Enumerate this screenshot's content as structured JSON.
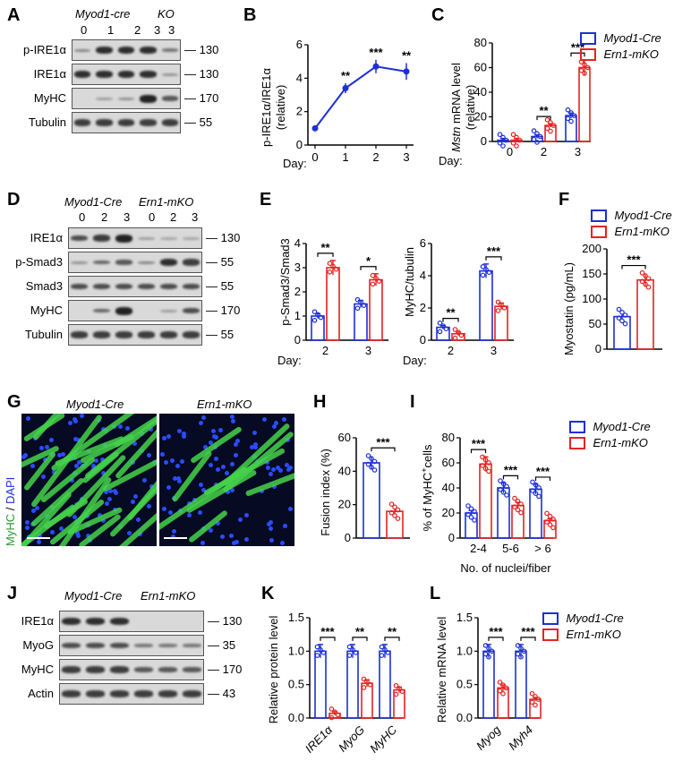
{
  "colors": {
    "cre": "#1d2fd6",
    "ko": "#e52222",
    "green": "#45d24a",
    "blue": "#2a4cff"
  },
  "legend": {
    "cre": "Myod1-Cre",
    "ko": "Ern1-mKO"
  },
  "A": {
    "letter": "A",
    "group1": "Myod1-cre",
    "group2": "KO",
    "lanes": [
      "0",
      "1",
      "2",
      "3",
      "3"
    ],
    "rows": [
      "p-IRE1α",
      "IRE1α",
      "MyHC",
      "Tubulin"
    ],
    "mw": [
      "130",
      "130",
      "170",
      "55"
    ]
  },
  "B": {
    "letter": "B",
    "ylabel_a": "p-IRE1α/IRE1α",
    "ylabel_b": "(relative)",
    "xprefix": "Day:",
    "chart_data": {
      "type": "line",
      "x": [
        0,
        1,
        2,
        3
      ],
      "values": [
        1.0,
        3.4,
        4.7,
        4.4
      ],
      "err": [
        0.1,
        0.3,
        0.4,
        0.5
      ],
      "sig": [
        "",
        "**",
        "***",
        "**"
      ],
      "ylim": [
        0,
        6
      ],
      "yticks": [
        0,
        2,
        4,
        6
      ]
    }
  },
  "C": {
    "letter": "C",
    "ylabel_a": "Mstn",
    "ylabel_b": " mRNA level",
    "ylabel_c": "(relative)",
    "xprefix": "Day:",
    "chart_data": {
      "type": "bar",
      "categories": [
        "0",
        "2",
        "3"
      ],
      "series": [
        {
          "name": "Myod1-Cre",
          "values": [
            1,
            4,
            21
          ]
        },
        {
          "name": "Ern1-mKO",
          "values": [
            1,
            13,
            60
          ]
        }
      ],
      "sig": [
        "",
        "**",
        "***"
      ],
      "ylim": [
        0,
        80
      ],
      "yticks": [
        0,
        20,
        40,
        60,
        80
      ]
    }
  },
  "D": {
    "letter": "D",
    "group1": "Myod1-Cre",
    "group2": "Ern1-mKO",
    "lanes": [
      "0",
      "2",
      "3",
      "0",
      "2",
      "3"
    ],
    "rows": [
      "IRE1α",
      "p-Smad3",
      "Smad3",
      "MyHC",
      "Tubulin"
    ],
    "mw": [
      "130",
      "55",
      "55",
      "170",
      "55"
    ]
  },
  "E": {
    "letter": "E",
    "xprefix": "Day:",
    "left": {
      "ylabel": "p-Smad3/Smad3",
      "chart_data": {
        "type": "bar",
        "categories": [
          "2",
          "3"
        ],
        "series": [
          {
            "name": "Myod1-Cre",
            "values": [
              1.0,
              1.5
            ]
          },
          {
            "name": "Ern1-mKO",
            "values": [
              3.0,
              2.5
            ]
          }
        ],
        "sig": [
          "**",
          "*"
        ],
        "ylim": [
          0,
          4
        ],
        "yticks": [
          0,
          1,
          2,
          3,
          4
        ]
      }
    },
    "right": {
      "ylabel": "MyHC/tubulin",
      "chart_data": {
        "type": "bar",
        "categories": [
          "2",
          "3"
        ],
        "series": [
          {
            "name": "Myod1-Cre",
            "values": [
              0.8,
              4.3
            ]
          },
          {
            "name": "Ern1-mKO",
            "values": [
              0.4,
              2.1
            ]
          }
        ],
        "sig": [
          "**",
          "***"
        ],
        "ylim": [
          0,
          6
        ],
        "yticks": [
          0,
          2,
          4,
          6
        ]
      }
    }
  },
  "F": {
    "letter": "F",
    "ylabel": "Myostatin (pg/mL)",
    "chart_data": {
      "type": "bar",
      "categories": [
        "Myod1-Cre",
        "Ern1-mKO"
      ],
      "values": [
        65,
        138
      ],
      "sig": "***",
      "ylim": [
        0,
        200
      ],
      "yticks": [
        0,
        50,
        100,
        150,
        200
      ]
    }
  },
  "G": {
    "letter": "G",
    "title1": "Myod1-Cre",
    "title2": "Ern1-mKO",
    "ylab_a": "MyHC",
    "ylab_sep": " / ",
    "ylab_b": "DAPI"
  },
  "H": {
    "letter": "H",
    "ylabel": "Fusion index (%)",
    "chart_data": {
      "type": "bar",
      "categories": [
        "Myod1-Cre",
        "Ern1-mKO"
      ],
      "values": [
        45,
        16
      ],
      "sig": "***",
      "ylim": [
        0,
        60
      ],
      "yticks": [
        0,
        20,
        40,
        60
      ]
    }
  },
  "I": {
    "letter": "I",
    "ylabel": "% of MyHC",
    "ylabel_sup": "+",
    "ylabel_end": "cells",
    "xlabel": "No. of nuclei/fiber",
    "chart_data": {
      "type": "bar",
      "categories": [
        "2-4",
        "5-6",
        "> 6"
      ],
      "series": [
        {
          "name": "Myod1-Cre",
          "values": [
            20,
            40,
            39
          ]
        },
        {
          "name": "Ern1-mKO",
          "values": [
            59,
            26,
            14
          ]
        }
      ],
      "sig": [
        "***",
        "***",
        "***"
      ],
      "ylim": [
        0,
        80
      ],
      "yticks": [
        0,
        20,
        40,
        60,
        80
      ]
    }
  },
  "J": {
    "letter": "J",
    "group1": "Myod1-Cre",
    "group2": "Ern1-mKO",
    "rows": [
      "IRE1α",
      "MyoG",
      "MyHC",
      "Actin"
    ],
    "mw": [
      "130",
      "35",
      "170",
      "43"
    ]
  },
  "K": {
    "letter": "K",
    "ylabel": "Relative protein level",
    "chart_data": {
      "type": "bar",
      "categories": [
        "IRE1α",
        "MyoG",
        "MyHC"
      ],
      "series": [
        {
          "name": "Myod1-Cre",
          "values": [
            1.0,
            1.0,
            1.0
          ]
        },
        {
          "name": "Ern1-mKO",
          "values": [
            0.07,
            0.52,
            0.42
          ]
        }
      ],
      "sig": [
        "***",
        "**",
        "**"
      ],
      "ylim": [
        0,
        1.5
      ],
      "yticks": [
        0.0,
        0.5,
        1.0,
        1.5
      ]
    }
  },
  "L": {
    "letter": "L",
    "ylabel": "Relative mRNA level",
    "chart_data": {
      "type": "bar",
      "categories": [
        "Myog",
        "Myh4"
      ],
      "series": [
        {
          "name": "Myod1-Cre",
          "values": [
            1.0,
            1.0
          ]
        },
        {
          "name": "Ern1-mKO",
          "values": [
            0.45,
            0.28
          ]
        }
      ],
      "sig": [
        "***",
        "***"
      ],
      "ylim": [
        0,
        1.5
      ],
      "yticks": [
        0.0,
        0.5,
        1.0,
        1.5
      ]
    }
  }
}
